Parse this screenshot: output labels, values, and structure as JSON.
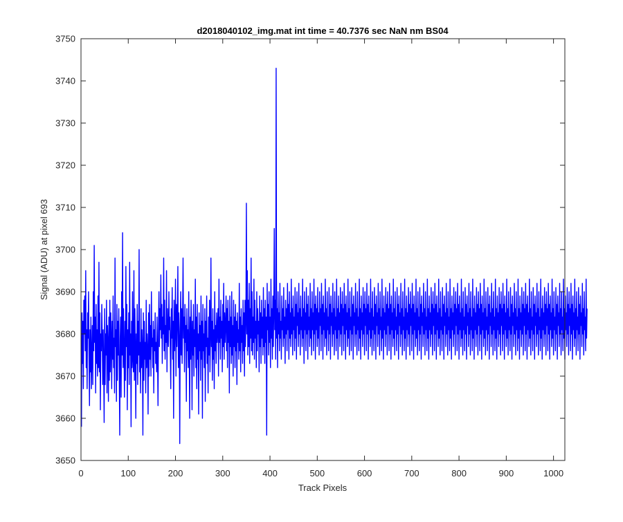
{
  "chart_data": {
    "type": "line",
    "title": "d2018040102_img.mat int time = 40.7376 sec  NaN nm BS04",
    "xlabel": "Track Pixels",
    "ylabel": "Signal (ADU) at pixel 693",
    "xlim": [
      0,
      1024
    ],
    "ylim": [
      3650,
      3750
    ],
    "xticks": [
      0,
      100,
      200,
      300,
      400,
      500,
      600,
      700,
      800,
      900,
      1000
    ],
    "yticks": [
      3650,
      3660,
      3670,
      3680,
      3690,
      3700,
      3710,
      3720,
      3730,
      3740,
      3750
    ],
    "grid": false,
    "legend": "none",
    "series": [
      {
        "color": "#0000ff",
        "x_start": 1,
        "x_step": 1,
        "values": [
          3658,
          3685,
          3673,
          3683,
          3667,
          3688,
          3680,
          3689,
          3676,
          3695,
          3672,
          3681,
          3667,
          3685,
          3679,
          3690,
          3674,
          3663,
          3681,
          3671,
          3684,
          3667,
          3675,
          3682,
          3668,
          3690,
          3676,
          3701,
          3678,
          3684,
          3666,
          3687,
          3673,
          3681,
          3670,
          3689,
          3672,
          3697,
          3671,
          3685,
          3662,
          3680,
          3676,
          3687,
          3679,
          3668,
          3681,
          3672,
          3659,
          3686,
          3668,
          3680,
          3675,
          3688,
          3666,
          3682,
          3678,
          3664,
          3684,
          3669,
          3688,
          3671,
          3685,
          3679,
          3667,
          3683,
          3674,
          3689,
          3672,
          3679,
          3666,
          3698,
          3677,
          3681,
          3664,
          3687,
          3669,
          3683,
          3675,
          3686,
          3671,
          3656,
          3679,
          3684,
          3665,
          3690,
          3675,
          3704,
          3672,
          3686,
          3676,
          3665,
          3683,
          3669,
          3696,
          3677,
          3687,
          3662,
          3681,
          3672,
          3685,
          3668,
          3697,
          3675,
          3680,
          3658,
          3683,
          3672,
          3690,
          3674,
          3671,
          3695,
          3669,
          3686,
          3677,
          3660,
          3680,
          3673,
          3687,
          3668,
          3683,
          3675,
          3700,
          3671,
          3678,
          3666,
          3686,
          3672,
          3681,
          3677,
          3656,
          3685,
          3669,
          3683,
          3674,
          3678,
          3666,
          3688,
          3672,
          3680,
          3676,
          3661,
          3685,
          3670,
          3687,
          3674,
          3682,
          3670,
          3690,
          3677,
          3679,
          3672,
          3683,
          3666,
          3681,
          3676,
          3685,
          3673,
          3678,
          3671,
          3684,
          3675,
          3663,
          3681,
          3690,
          3677,
          3686,
          3681,
          3694,
          3679,
          3687,
          3673,
          3684,
          3680,
          3698,
          3676,
          3688,
          3674,
          3682,
          3678,
          3695,
          3671,
          3686,
          3680,
          3677,
          3690,
          3681,
          3684,
          3676,
          3667,
          3686,
          3679,
          3691,
          3674,
          3683,
          3660,
          3688,
          3676,
          3681,
          3693,
          3670,
          3687,
          3677,
          3684,
          3696,
          3672,
          3685,
          3679,
          3654,
          3681,
          3690,
          3675,
          3686,
          3673,
          3683,
          3698,
          3679,
          3684,
          3671,
          3687,
          3678,
          3682,
          3664,
          3686,
          3676,
          3681,
          3672,
          3690,
          3677,
          3660,
          3684,
          3674,
          3688,
          3680,
          3662,
          3683,
          3675,
          3687,
          3670,
          3681,
          3677,
          3693,
          3672,
          3684,
          3667,
          3687,
          3674,
          3680,
          3661,
          3685,
          3676,
          3682,
          3669,
          3689,
          3674,
          3683,
          3660,
          3687,
          3676,
          3680,
          3672,
          3686,
          3664,
          3683,
          3677,
          3689,
          3673,
          3679,
          3666,
          3684,
          3675,
          3688,
          3671,
          3680,
          3698,
          3677,
          3683,
          3669,
          3686,
          3674,
          3681,
          3667,
          3690,
          3676,
          3682,
          3673,
          3685,
          3678,
          3681,
          3686,
          3670,
          3693,
          3678,
          3684,
          3674,
          3688,
          3679,
          3683,
          3671,
          3687,
          3677,
          3692,
          3674,
          3685,
          3678,
          3682,
          3689,
          3676,
          3686,
          3672,
          3688,
          3678,
          3683,
          3666,
          3689,
          3677,
          3684,
          3673,
          3690,
          3675,
          3682,
          3670,
          3688,
          3677,
          3684,
          3672,
          3687,
          3676,
          3683,
          3668,
          3685,
          3678,
          3681,
          3674,
          3692,
          3676,
          3684,
          3671,
          3686,
          3678,
          3682,
          3673,
          3688,
          3676,
          3685,
          3670,
          3688,
          3677,
          3683,
          3711,
          3680,
          3695,
          3675,
          3688,
          3677,
          3692,
          3673,
          3686,
          3679,
          3698,
          3676,
          3690,
          3675,
          3684,
          3678,
          3693,
          3674,
          3688,
          3679,
          3683,
          3672,
          3690,
          3676,
          3686,
          3680,
          3683,
          3671,
          3689,
          3677,
          3685,
          3673,
          3688,
          3679,
          3684,
          3675,
          3691,
          3677,
          3686,
          3673,
          3688,
          3678,
          3684,
          3656,
          3692,
          3681,
          3687,
          3675,
          3690,
          3678,
          3684,
          3672,
          3693,
          3679,
          3686,
          3674,
          3689,
          3677,
          3685,
          3705,
          3681,
          3688,
          3674,
          3743,
          3679,
          3686,
          3672,
          3690,
          3680,
          3685,
          3676,
          3692,
          3679,
          3683,
          3674,
          3689,
          3681,
          3686,
          3677,
          3691,
          3679,
          3684,
          3673,
          3688,
          3680,
          3686,
          3676,
          3692,
          3681,
          3687,
          3674,
          3690,
          3679,
          3685,
          3677,
          3693,
          3680,
          3686,
          3675,
          3689,
          3681,
          3684,
          3676,
          3691,
          3679,
          3687,
          3674,
          3690,
          3682,
          3685,
          3677,
          3692,
          3680,
          3686,
          3675,
          3689,
          3681,
          3684,
          3677,
          3693,
          3679,
          3686,
          3673,
          3690,
          3681,
          3685,
          3676,
          3691,
          3680,
          3687,
          3674,
          3689,
          3681,
          3684,
          3677,
          3692,
          3679,
          3686,
          3675,
          3690,
          3681,
          3685,
          3676,
          3693,
          3680,
          3687,
          3674,
          3689,
          3681,
          3686,
          3677,
          3691,
          3679,
          3685,
          3675,
          3690,
          3682,
          3686,
          3676,
          3692,
          3680,
          3687,
          3674,
          3689,
          3681,
          3685,
          3677,
          3693,
          3679,
          3686,
          3675,
          3690,
          3681,
          3684,
          3676,
          3691,
          3680,
          3687,
          3674,
          3689,
          3682,
          3685,
          3677,
          3692,
          3680,
          3686,
          3675,
          3690,
          3681,
          3684,
          3676,
          3693,
          3679,
          3686,
          3674,
          3689,
          3681,
          3685,
          3677,
          3691,
          3680,
          3687,
          3675,
          3690,
          3682,
          3686,
          3676,
          3692,
          3680,
          3687,
          3674,
          3689,
          3681,
          3685,
          3677,
          3693,
          3679,
          3686,
          3675,
          3690,
          3681,
          3684,
          3676,
          3691,
          3680,
          3687,
          3674,
          3689,
          3682,
          3685,
          3677,
          3692,
          3680,
          3686,
          3675,
          3690,
          3681,
          3684,
          3676,
          3693,
          3679,
          3686,
          3674,
          3689,
          3681,
          3685,
          3677,
          3691,
          3680,
          3687,
          3675,
          3690,
          3682,
          3686,
          3676,
          3692,
          3680,
          3687,
          3674,
          3689,
          3681,
          3685,
          3677,
          3693,
          3679,
          3686,
          3675,
          3690,
          3681,
          3684,
          3676,
          3691,
          3680,
          3687,
          3674,
          3689,
          3682,
          3685,
          3677,
          3692,
          3680,
          3686,
          3675,
          3690,
          3681,
          3684,
          3676,
          3693,
          3679,
          3686,
          3674,
          3689,
          3681,
          3685,
          3677,
          3691,
          3680,
          3687,
          3675,
          3690,
          3682,
          3686,
          3676,
          3692,
          3680,
          3687,
          3674,
          3689,
          3681,
          3685,
          3677,
          3693,
          3679,
          3686,
          3675,
          3690,
          3681,
          3684,
          3676,
          3691,
          3680,
          3687,
          3674,
          3689,
          3682,
          3685,
          3677,
          3692,
          3680,
          3686,
          3675,
          3690,
          3681,
          3684,
          3676,
          3693,
          3679,
          3686,
          3674,
          3689,
          3681,
          3685,
          3677,
          3691,
          3680,
          3687,
          3675,
          3690,
          3682,
          3686,
          3676,
          3692,
          3680,
          3687,
          3674,
          3689,
          3681,
          3685,
          3677,
          3693,
          3679,
          3686,
          3675,
          3690,
          3681,
          3684,
          3676,
          3691,
          3680,
          3687,
          3674,
          3689,
          3682,
          3685,
          3677,
          3692,
          3680,
          3686,
          3675,
          3690,
          3681,
          3684,
          3676,
          3693,
          3679,
          3686,
          3674,
          3689,
          3681,
          3685,
          3677,
          3691,
          3680,
          3687,
          3675,
          3690,
          3682,
          3686,
          3676,
          3692,
          3680,
          3687,
          3674,
          3689,
          3681,
          3685,
          3677,
          3693,
          3679,
          3686,
          3675,
          3690,
          3681,
          3684,
          3676,
          3691,
          3680,
          3687,
          3674,
          3689,
          3682,
          3685,
          3677,
          3692,
          3680,
          3686,
          3675,
          3690,
          3681,
          3684,
          3676,
          3693,
          3679,
          3686,
          3674,
          3689,
          3681,
          3685,
          3677,
          3691,
          3680,
          3687,
          3675,
          3690,
          3682,
          3686,
          3676,
          3692,
          3680,
          3687,
          3674,
          3689,
          3681,
          3685,
          3677,
          3693,
          3679,
          3686,
          3675,
          3690,
          3681,
          3684,
          3676,
          3691,
          3680,
          3687,
          3674,
          3689,
          3682,
          3685,
          3677,
          3692,
          3680,
          3686,
          3675,
          3690,
          3681,
          3684,
          3676,
          3693,
          3679,
          3686,
          3674,
          3689,
          3681,
          3685,
          3677,
          3691,
          3680,
          3687,
          3675,
          3690,
          3682,
          3686,
          3676,
          3692,
          3680,
          3687,
          3674,
          3689,
          3681,
          3685,
          3677,
          3693,
          3679,
          3686,
          3675,
          3690,
          3681,
          3684,
          3676,
          3691,
          3680,
          3687,
          3674,
          3689,
          3682,
          3685,
          3677,
          3692,
          3680,
          3686,
          3675,
          3690,
          3681,
          3684,
          3676,
          3693,
          3679,
          3686,
          3674,
          3689,
          3681,
          3685,
          3677,
          3691,
          3680,
          3687,
          3675,
          3690,
          3682,
          3686,
          3676,
          3692,
          3680,
          3687,
          3674,
          3689,
          3681,
          3685,
          3677,
          3693,
          3679,
          3686,
          3675,
          3690,
          3681,
          3684,
          3676,
          3691,
          3680,
          3687,
          3674,
          3689,
          3682,
          3685,
          3677,
          3692,
          3680,
          3686,
          3675,
          3690,
          3681,
          3684,
          3676,
          3693,
          3679,
          3686,
          3674,
          3689,
          3681,
          3685,
          3677,
          3691,
          3680,
          3687,
          3675,
          3690,
          3682,
          3686,
          3676,
          3692,
          3680,
          3687,
          3674,
          3689,
          3681,
          3685,
          3677,
          3693,
          3679,
          3686,
          3675,
          3690,
          3681,
          3684,
          3676,
          3691,
          3680,
          3687,
          3674,
          3689,
          3682,
          3685,
          3677,
          3692,
          3680,
          3686,
          3675,
          3690,
          3681,
          3684,
          3676,
          3693,
          3679,
          3686,
          3674,
          3689,
          3681,
          3685,
          3677,
          3691,
          3680,
          3687,
          3675,
          3690,
          3682,
          3686,
          3676,
          3692,
          3680,
          3687,
          3674,
          3689,
          3681,
          3685,
          3677,
          3693,
          3679,
          3686,
          3675,
          3690,
          3681,
          3684,
          3676,
          3691,
          3680,
          3687,
          3674,
          3689,
          3682,
          3685,
          3677,
          3692,
          3680,
          3686,
          3675,
          3690,
          3681,
          3684,
          3676,
          3693,
          3679,
          3686,
          3674,
          3689,
          3681,
          3685,
          3677,
          3691,
          3680,
          3687,
          3675,
          3690,
          3682,
          3686,
          3676,
          3692,
          3680,
          3687,
          3674,
          3689,
          3681,
          3685,
          3677,
          3693,
          3679,
          3686,
          3675,
          3690,
          3681,
          3684,
          3676,
          3691,
          3680,
          3687,
          3674,
          3689,
          3682,
          3685,
          3677,
          3692,
          3680,
          3686,
          3675,
          3690,
          3681,
          3684,
          3676,
          3693,
          3679,
          3686
        ]
      }
    ]
  }
}
